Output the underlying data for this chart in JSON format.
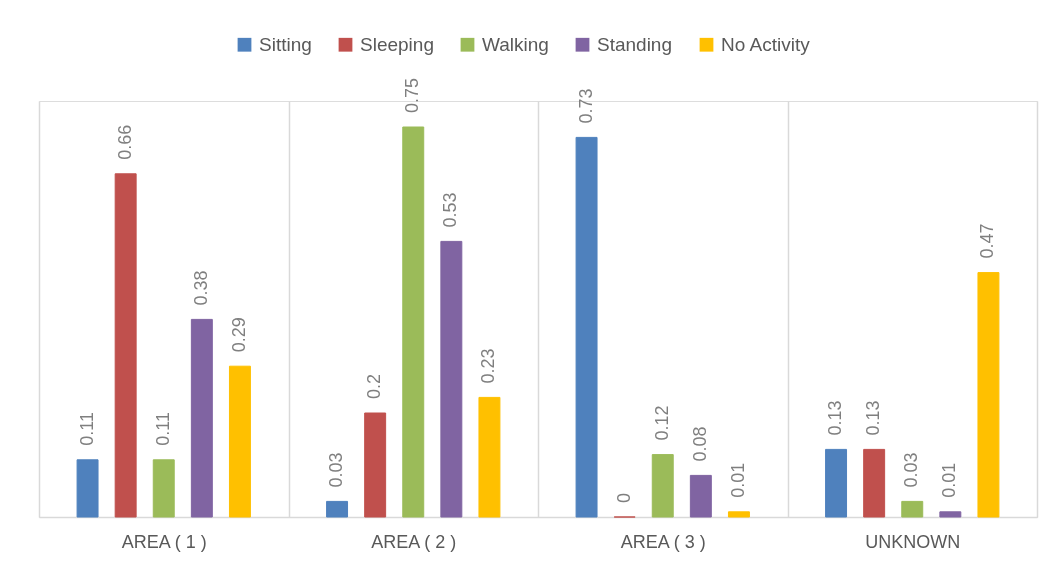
{
  "chart_data": {
    "type": "bar",
    "categories": [
      "AREA ( 1 )",
      "AREA ( 2 )",
      "AREA ( 3 )",
      "UNKNOWN"
    ],
    "series": [
      {
        "name": "Sitting",
        "color": "#4f81bd",
        "values": [
          0.11,
          0.03,
          0.73,
          0.13
        ]
      },
      {
        "name": "Sleeping",
        "color": "#c0504d",
        "values": [
          0.66,
          0.2,
          0,
          0.13
        ]
      },
      {
        "name": "Walking",
        "color": "#9bbb59",
        "values": [
          0.11,
          0.75,
          0.12,
          0.03
        ]
      },
      {
        "name": "Standing",
        "color": "#8064a2",
        "values": [
          0.38,
          0.53,
          0.08,
          0.01
        ]
      },
      {
        "name": "No Activity",
        "color": "#ffc000",
        "values": [
          0.29,
          0.23,
          0.01,
          0.47
        ]
      }
    ],
    "data_labels": true,
    "legend": "top",
    "grid": "x",
    "tick_labels": "x"
  }
}
